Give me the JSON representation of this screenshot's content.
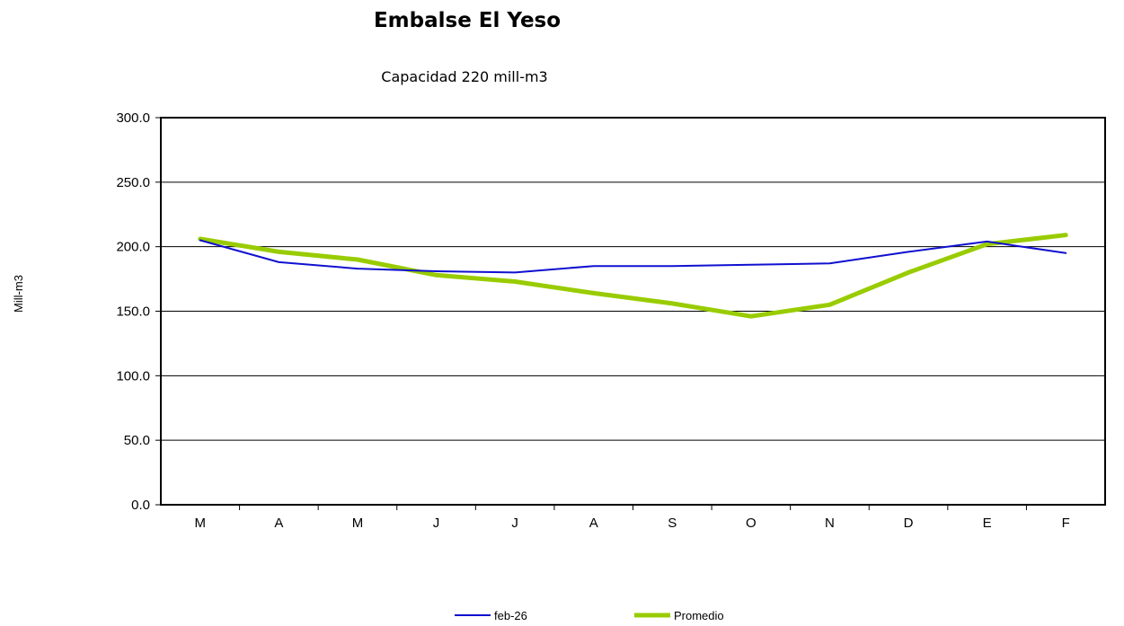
{
  "chart_data": {
    "type": "line",
    "title": "Embalse El Yeso",
    "subtitle": "Capacidad 220 mill-m3",
    "ylabel": "Mill-m3",
    "xlabel": "",
    "categories": [
      "M",
      "A",
      "M",
      "J",
      "J",
      "A",
      "S",
      "O",
      "N",
      "D",
      "E",
      "F"
    ],
    "ylim": [
      0,
      300
    ],
    "yticks": [
      "0.0",
      "50.0",
      "100.0",
      "150.0",
      "200.0",
      "250.0",
      "300.0"
    ],
    "grid": true,
    "legend_position": "bottom",
    "series": [
      {
        "name": "feb-26",
        "color": "#1010d0",
        "values": [
          205,
          188,
          183,
          181,
          180,
          185,
          185,
          186,
          187,
          196,
          204,
          195
        ]
      },
      {
        "name": "Promedio",
        "color": "#99cc00",
        "values": [
          206,
          196,
          190,
          178,
          173,
          164,
          156,
          146,
          155,
          180,
          202,
          209
        ]
      }
    ]
  }
}
